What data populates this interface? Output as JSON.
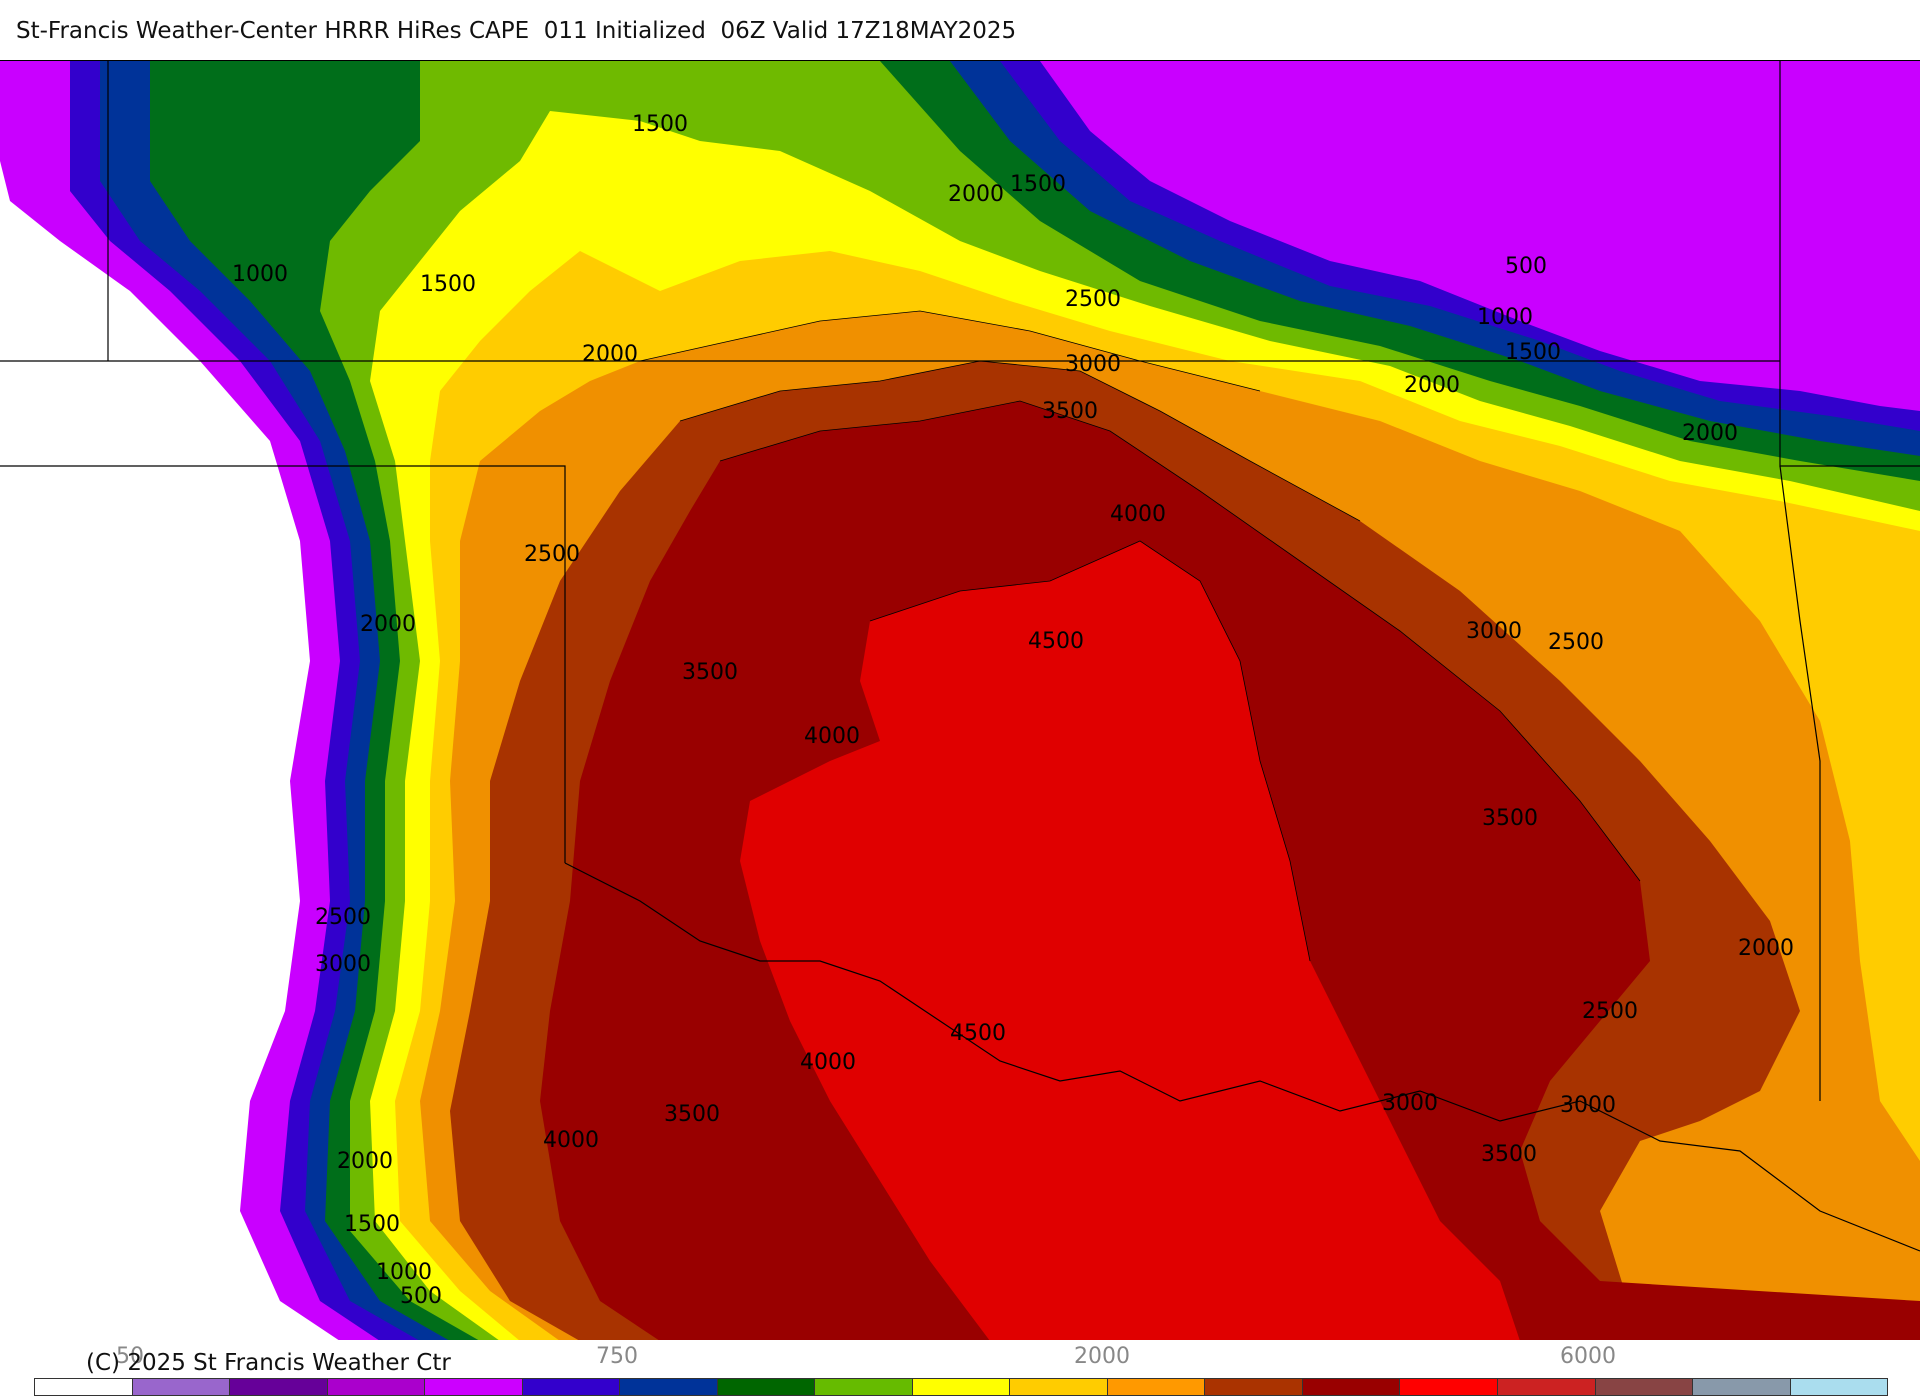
{
  "header": {
    "title": "St-Francis Weather-Center HRRR HiRes CAPE  011 Initialized  06Z Valid 17Z18MAY2025"
  },
  "footer": {
    "copyright": "(C) 2025 St Francis Weather Ctr",
    "colorbar_ticks": [
      "50",
      "750",
      "2000",
      "6000"
    ]
  },
  "legend_colors": [
    "#ffffff",
    "#9966cc",
    "#660099",
    "#aa00cc",
    "#cc00ff",
    "#3300cc",
    "#003399",
    "#006600",
    "#66bb00",
    "#ffff00",
    "#ffcc00",
    "#ff9900",
    "#aa3300",
    "#990000",
    "#ff0000",
    "#cc2222",
    "#884444",
    "#8899aa",
    "#aaddee"
  ],
  "contour_labels": [
    {
      "text": "1500"
    },
    {
      "text": "2000"
    },
    {
      "text": "1500"
    },
    {
      "text": "1000"
    },
    {
      "text": "1500"
    },
    {
      "text": "2000"
    },
    {
      "text": "2500"
    },
    {
      "text": "3000"
    },
    {
      "text": "3500"
    },
    {
      "text": "500"
    },
    {
      "text": "1000"
    },
    {
      "text": "1500"
    },
    {
      "text": "2000"
    },
    {
      "text": "2000"
    },
    {
      "text": "4000"
    },
    {
      "text": "2500"
    },
    {
      "text": "2000"
    },
    {
      "text": "4500"
    },
    {
      "text": "3000"
    },
    {
      "text": "2500"
    },
    {
      "text": "3500"
    },
    {
      "text": "4000"
    },
    {
      "text": "3500"
    },
    {
      "text": "2500"
    },
    {
      "text": "3000"
    },
    {
      "text": "2000"
    },
    {
      "text": "2500"
    },
    {
      "text": "4500"
    },
    {
      "text": "4000"
    },
    {
      "text": "3000"
    },
    {
      "text": "3500"
    },
    {
      "text": "4000"
    },
    {
      "text": "3000"
    },
    {
      "text": "3500"
    },
    {
      "text": "2000"
    },
    {
      "text": "1500"
    },
    {
      "text": "1000"
    },
    {
      "text": "500"
    }
  ]
}
